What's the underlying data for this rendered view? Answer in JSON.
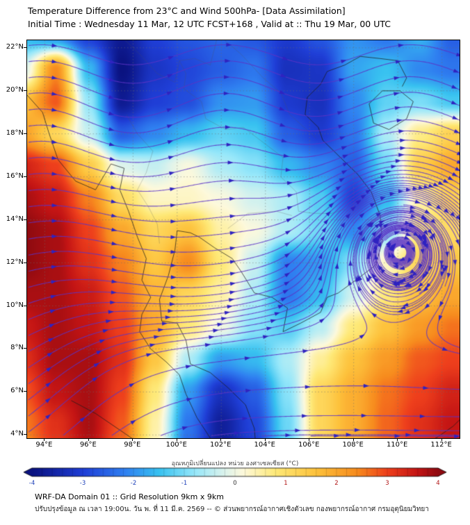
{
  "header": {
    "title": "Temperature Difference from 23°C and Wind 500hPa- [Data Assimilation]",
    "subtitle": "Initial Time : Wednesday 11 Mar, 12 UTC FCST+168 , Valid at ::  Thu 19 Mar, 00 UTC"
  },
  "footer": {
    "line1": "WRF-DA Domain 01 :: Grid Resolution 9km x 9km",
    "line2": "ปรับปรุงข้อมูล ณ เวลา 19:00น. วัน พ. ที่ 11 มี.ค. 2569 -- © ส่วนพยากรณ์อากาศเชิงตัวเลข กองพยากรณ์อากาศ กรมอุตุนิยมวิทยา"
  },
  "chart_data": {
    "type": "heatmap",
    "title": "Temperature Difference from 23°C and Wind 500hPa- [Data Assimilation]",
    "xlabel": "",
    "ylabel": "",
    "lon_range": [
      93.2,
      112.8
    ],
    "lat_range": [
      3.85,
      22.35
    ],
    "x_ticks": [
      {
        "v": 94,
        "label": "94°E"
      },
      {
        "v": 96,
        "label": "96°E"
      },
      {
        "v": 98,
        "label": "98°E"
      },
      {
        "v": 100,
        "label": "100°E"
      },
      {
        "v": 102,
        "label": "102°E"
      },
      {
        "v": 104,
        "label": "104°E"
      },
      {
        "v": 106,
        "label": "106°E"
      },
      {
        "v": 108,
        "label": "108°E"
      },
      {
        "v": 110,
        "label": "110°E"
      },
      {
        "v": 112,
        "label": "112°E"
      }
    ],
    "y_ticks": [
      {
        "v": 22,
        "label": "22°N"
      },
      {
        "v": 20,
        "label": "20°N"
      },
      {
        "v": 18,
        "label": "18°N"
      },
      {
        "v": 16,
        "label": "16°N"
      },
      {
        "v": 14,
        "label": "14°N"
      },
      {
        "v": 12,
        "label": "12°N"
      },
      {
        "v": 10,
        "label": "10°N"
      },
      {
        "v": 8,
        "label": "8°N"
      },
      {
        "v": 6,
        "label": "6°N"
      },
      {
        "v": 4,
        "label": "4°N"
      }
    ],
    "grid_lons": [
      93,
      94.5,
      96,
      97.5,
      99,
      100.5,
      102,
      103.5,
      105,
      106.5,
      108,
      109.5,
      111,
      112.5
    ],
    "grid_lats": [
      22.5,
      21,
      19.5,
      18,
      16.5,
      15,
      13.5,
      12,
      10.5,
      9,
      7.5,
      6,
      4.5,
      3
    ],
    "values": [
      [
        -1.6,
        -2.0,
        -3.0,
        -3.8,
        -3.0,
        -2.7,
        -2.5,
        -2.7,
        -3.1,
        -2.7,
        -2.0,
        -2.3,
        -1.7,
        -2.6
      ],
      [
        -0.3,
        2.4,
        -1.6,
        -4.0,
        -3.2,
        -2.9,
        -2.6,
        -2.3,
        -3.3,
        -3.2,
        -1.8,
        -1.5,
        -2.1,
        -2.3
      ],
      [
        1.6,
        2.8,
        -0.8,
        -3.8,
        -3.0,
        -2.8,
        -2.0,
        -1.9,
        -3.1,
        -3.3,
        -2.1,
        -1.2,
        -1.0,
        -1.4
      ],
      [
        2.1,
        1.2,
        -0.4,
        -2.6,
        -2.1,
        -1.6,
        -1.2,
        -1.4,
        -2.6,
        -3.1,
        -2.3,
        -0.6,
        0.7,
        1.3
      ],
      [
        3.4,
        3.0,
        1.4,
        -0.2,
        -0.4,
        0.1,
        -0.6,
        -0.9,
        -1.6,
        -2.1,
        -2.6,
        -1.1,
        1.4,
        2.0
      ],
      [
        3.8,
        3.5,
        2.5,
        1.1,
        0.3,
        0.3,
        0.1,
        -0.3,
        -0.6,
        -1.3,
        -3.0,
        -1.6,
        0.5,
        1.3
      ],
      [
        4.0,
        3.8,
        3.0,
        2.0,
        1.2,
        1.6,
        0.5,
        0.1,
        -0.6,
        -1.1,
        -2.1,
        -0.9,
        0.8,
        1.1
      ],
      [
        4.0,
        3.8,
        3.2,
        2.5,
        1.5,
        2.4,
        0.8,
        -0.4,
        -2.2,
        -1.9,
        -0.9,
        0.3,
        1.2,
        1.5
      ],
      [
        3.8,
        3.8,
        3.5,
        2.8,
        1.8,
        1.2,
        0.5,
        -0.6,
        -2.3,
        -1.6,
        -0.3,
        0.8,
        1.6,
        2.0
      ],
      [
        3.5,
        3.8,
        3.6,
        3.0,
        2.0,
        0.8,
        0.0,
        -0.9,
        -1.3,
        -0.5,
        0.8,
        1.6,
        2.2,
        2.6
      ],
      [
        3.2,
        3.8,
        3.8,
        3.2,
        1.5,
        -0.6,
        -1.9,
        -1.6,
        -0.6,
        0.6,
        1.6,
        2.2,
        2.8,
        3.0
      ],
      [
        2.8,
        3.6,
        3.8,
        3.0,
        0.8,
        -1.9,
        -3.3,
        -2.6,
        -0.9,
        1.2,
        1.9,
        2.6,
        3.0,
        3.4
      ],
      [
        2.5,
        3.2,
        3.8,
        2.8,
        0.5,
        -2.3,
        -3.7,
        -2.9,
        -1.1,
        1.2,
        1.9,
        2.7,
        3.2,
        3.6
      ],
      [
        2.2,
        3.0,
        3.6,
        2.5,
        0.3,
        -2.5,
        -3.7,
        -3.1,
        -1.3,
        1.0,
        1.9,
        2.7,
        3.2,
        3.6
      ]
    ],
    "colormap": [
      [
        -4.0,
        "#0a1280"
      ],
      [
        -3.0,
        "#1f3ed6"
      ],
      [
        -2.2,
        "#2f7ef0"
      ],
      [
        -1.5,
        "#38c2f0"
      ],
      [
        -0.8,
        "#96e7fa"
      ],
      [
        -0.2,
        "#ddf3ec"
      ],
      [
        0.15,
        "#fdf9dc"
      ],
      [
        0.8,
        "#fee978"
      ],
      [
        1.6,
        "#fdc23c"
      ],
      [
        2.4,
        "#f78c1e"
      ],
      [
        3.0,
        "#ee3f1c"
      ],
      [
        3.6,
        "#c31414"
      ],
      [
        4.0,
        "#8e0a10"
      ]
    ],
    "colorbar": {
      "label": "อุณหภูมิเปลี่ยนแปลง หน่วย องศาเซลเซียส (°C)",
      "min": -4,
      "max": 4,
      "ticks": [
        -4,
        -3,
        -2,
        -1,
        0,
        1,
        2,
        3,
        4
      ],
      "tick_neg_color": "#1a3db8",
      "tick_pos_color": "#b01212",
      "tick_zero_color": "#333333"
    },
    "wind": {
      "base_u": 1.3,
      "waves": [
        {
          "amp": 0.55,
          "k": 0.75,
          "trough_lon": 98,
          "lat_center": 19.5,
          "lat_width": 5.0
        },
        {
          "amp": 0.3,
          "k": 0.5,
          "trough_lon": 101,
          "lat_center": 11.5,
          "lat_width": 4.0
        }
      ],
      "vortices": [
        {
          "lon": 110.2,
          "lat": 13.0,
          "strength": 2.6,
          "radius": 3.0,
          "rot": 1
        }
      ],
      "v_cells": [
        {
          "lon": 95.0,
          "lat": 5.0,
          "amp": 1.15,
          "wlon": 5.0,
          "wlat": 4.5
        }
      ],
      "seeds": {
        "left_edge": {
          "lat_start": 4.1,
          "lat_end": 22.3,
          "step": 0.75
        },
        "bottom_edge": {
          "lat": 3.95,
          "lons": [
            94.8,
            97.0,
            99.2,
            101.5,
            103.8,
            106.0
          ]
        },
        "vortex_rings": {
          "center": [
            110.2,
            13.0
          ],
          "radii": [
            0.8,
            1.7
          ],
          "points": 4
        }
      },
      "line_color": "rgba(92,52,198,0.85)",
      "arrow_color": "#2f23c0"
    },
    "style": {
      "grid_color": "rgba(110,110,110,0.75)",
      "coast_color": "#1b1b1b",
      "border_color": "#555555"
    },
    "coastlines": [
      [
        [
          93.2,
          19.8
        ],
        [
          93.9,
          19.0
        ],
        [
          94.2,
          18.0
        ],
        [
          94.6,
          16.8
        ],
        [
          95.4,
          15.8
        ],
        [
          96.3,
          15.4
        ],
        [
          97.0,
          16.6
        ],
        [
          97.6,
          16.4
        ],
        [
          97.4,
          15.4
        ],
        [
          97.8,
          14.4
        ],
        [
          98.2,
          13.2
        ],
        [
          98.6,
          12.2
        ],
        [
          98.4,
          11.2
        ],
        [
          98.8,
          10.4
        ],
        [
          98.4,
          9.6
        ],
        [
          98.3,
          8.8
        ],
        [
          98.8,
          8.0
        ],
        [
          99.5,
          7.4
        ],
        [
          100.1,
          6.8
        ],
        [
          100.4,
          5.9
        ],
        [
          100.9,
          4.8
        ],
        [
          101.6,
          3.7
        ],
        [
          102.2,
          3.0
        ]
      ],
      [
        [
          103.6,
          3.0
        ],
        [
          103.5,
          4.3
        ],
        [
          103.1,
          5.4
        ],
        [
          102.3,
          6.2
        ],
        [
          101.5,
          6.9
        ],
        [
          100.6,
          7.3
        ],
        [
          100.4,
          8.4
        ],
        [
          100.0,
          9.2
        ],
        [
          99.3,
          9.3
        ],
        [
          99.2,
          10.3
        ],
        [
          99.6,
          11.4
        ],
        [
          99.9,
          12.6
        ],
        [
          100.0,
          13.5
        ],
        [
          100.6,
          13.4
        ],
        [
          101.0,
          13.2
        ],
        [
          101.7,
          12.7
        ],
        [
          102.5,
          12.2
        ],
        [
          102.9,
          11.6
        ],
        [
          103.5,
          10.6
        ],
        [
          104.3,
          10.4
        ],
        [
          105.0,
          9.9
        ],
        [
          104.8,
          8.8
        ],
        [
          105.6,
          9.2
        ],
        [
          106.5,
          9.7
        ],
        [
          106.8,
          10.4
        ],
        [
          107.3,
          10.6
        ],
        [
          108.1,
          11.2
        ],
        [
          109.0,
          11.9
        ],
        [
          109.3,
          13.0
        ],
        [
          109.2,
          14.2
        ],
        [
          108.8,
          15.3
        ],
        [
          108.2,
          16.1
        ],
        [
          107.5,
          16.8
        ],
        [
          106.6,
          17.7
        ],
        [
          106.4,
          18.3
        ],
        [
          105.8,
          18.9
        ],
        [
          105.9,
          19.7
        ],
        [
          106.5,
          20.3
        ],
        [
          106.8,
          20.9
        ],
        [
          107.6,
          21.2
        ],
        [
          108.3,
          21.6
        ],
        [
          109.2,
          21.5
        ],
        [
          110.0,
          21.4
        ],
        [
          110.4,
          20.6
        ],
        [
          110.2,
          20.2
        ]
      ],
      [
        [
          108.7,
          19.4
        ],
        [
          109.3,
          20.0
        ],
        [
          110.1,
          20.0
        ],
        [
          110.7,
          19.5
        ],
        [
          110.4,
          18.7
        ],
        [
          109.6,
          18.2
        ],
        [
          108.9,
          18.5
        ],
        [
          108.7,
          19.4
        ]
      ],
      [
        [
          95.2,
          5.6
        ],
        [
          96.3,
          5.0
        ],
        [
          97.3,
          4.3
        ],
        [
          98.3,
          3.6
        ],
        [
          99.2,
          3.0
        ]
      ],
      [
        [
          110.9,
          3.4
        ],
        [
          111.8,
          3.9
        ],
        [
          112.5,
          4.4
        ],
        [
          112.9,
          4.8
        ]
      ]
    ],
    "borders": [
      [
        [
          100.1,
          21.4
        ],
        [
          100.4,
          20.8
        ],
        [
          100.3,
          20.1
        ],
        [
          101.1,
          19.5
        ],
        [
          101.3,
          18.7
        ],
        [
          102.2,
          18.2
        ],
        [
          103.0,
          18.3
        ],
        [
          103.9,
          17.6
        ],
        [
          104.8,
          16.9
        ],
        [
          104.7,
          16.0
        ],
        [
          105.4,
          15.3
        ],
        [
          105.5,
          14.4
        ],
        [
          106.2,
          14.3
        ],
        [
          107.0,
          14.3
        ],
        [
          107.6,
          14.5
        ]
      ],
      [
        [
          102.1,
          22.4
        ],
        [
          102.9,
          21.7
        ],
        [
          103.9,
          20.6
        ],
        [
          104.7,
          19.9
        ],
        [
          105.1,
          18.9
        ],
        [
          106.3,
          17.8
        ]
      ],
      [
        [
          97.7,
          18.9
        ],
        [
          98.2,
          18.0
        ],
        [
          98.9,
          17.2
        ],
        [
          98.6,
          16.2
        ],
        [
          98.2,
          15.4
        ],
        [
          98.7,
          14.6
        ],
        [
          99.1,
          13.8
        ],
        [
          99.2,
          12.9
        ]
      ],
      [
        [
          97.6,
          22.4
        ],
        [
          98.4,
          21.6
        ],
        [
          99.1,
          20.8
        ],
        [
          99.9,
          20.4
        ],
        [
          100.1,
          21.4
        ],
        [
          100.8,
          21.5
        ],
        [
          101.5,
          21.2
        ],
        [
          101.8,
          22.4
        ]
      ],
      [
        [
          102.3,
          13.6
        ],
        [
          103.2,
          14.3
        ],
        [
          104.5,
          14.4
        ],
        [
          105.2,
          14.2
        ]
      ]
    ]
  }
}
